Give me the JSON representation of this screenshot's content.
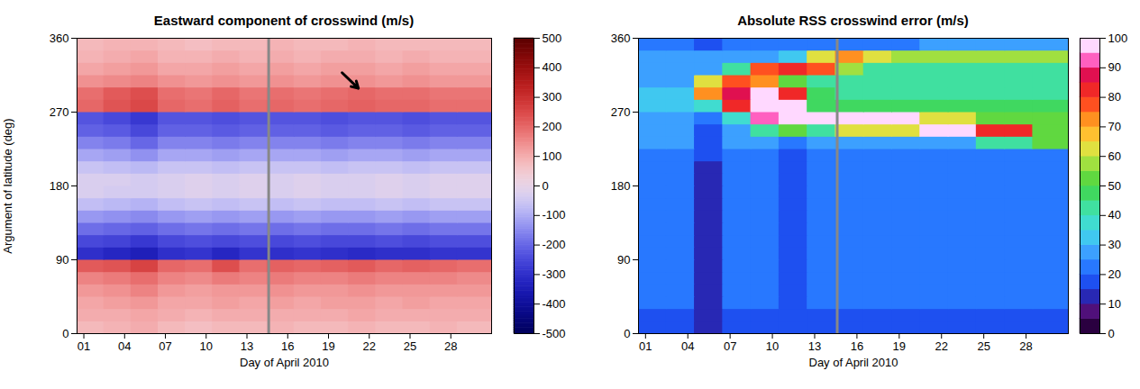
{
  "chart_data": [
    {
      "type": "heatmap",
      "title": "Eastward component of crosswind (m/s)",
      "x_label": "Day of April 2010",
      "y_label": "Argument of latitude (deg)",
      "xlim": [
        0.5,
        31
      ],
      "ylim": [
        0,
        360
      ],
      "xticks": [
        {
          "value": 1,
          "label": "01"
        },
        {
          "value": 4,
          "label": "04"
        },
        {
          "value": 7,
          "label": "07"
        },
        {
          "value": 10,
          "label": "10"
        },
        {
          "value": 13,
          "label": "13"
        },
        {
          "value": 16,
          "label": "16"
        },
        {
          "value": 19,
          "label": "19"
        },
        {
          "value": 22,
          "label": "22"
        },
        {
          "value": 25,
          "label": "25"
        },
        {
          "value": 28,
          "label": "28"
        }
      ],
      "yticks": [
        0,
        90,
        180,
        270,
        360
      ],
      "x_bins": [
        0.5,
        2.5,
        4.5,
        6.5,
        8.5,
        10.5,
        12.5,
        14.5,
        16.5,
        18.5,
        20.5,
        22.5,
        24.5,
        26.5,
        28.5,
        31
      ],
      "y_bins": [
        0,
        15,
        30,
        45,
        60,
        75,
        90,
        105,
        120,
        135,
        150,
        165,
        180,
        195,
        210,
        225,
        240,
        255,
        270,
        285,
        300,
        315,
        330,
        345,
        360
      ],
      "values": [
        [
          80,
          90,
          100,
          80,
          70,
          80,
          80,
          90,
          80,
          80,
          90,
          80,
          80,
          90,
          80
        ],
        [
          100,
          100,
          110,
          100,
          90,
          100,
          100,
          100,
          100,
          100,
          110,
          100,
          100,
          100,
          100
        ],
        [
          110,
          120,
          130,
          110,
          110,
          120,
          110,
          120,
          110,
          120,
          120,
          110,
          120,
          110,
          110
        ],
        [
          130,
          140,
          160,
          130,
          120,
          130,
          130,
          140,
          130,
          130,
          140,
          130,
          130,
          130,
          130
        ],
        [
          160,
          170,
          190,
          160,
          150,
          170,
          160,
          170,
          160,
          160,
          170,
          160,
          160,
          160,
          150
        ],
        [
          220,
          230,
          260,
          200,
          190,
          240,
          190,
          210,
          200,
          210,
          220,
          200,
          210,
          200,
          190
        ],
        [
          -300,
          -320,
          -340,
          -300,
          -290,
          -320,
          -290,
          -300,
          -290,
          -300,
          -310,
          -300,
          -300,
          -290,
          -290
        ],
        [
          -250,
          -260,
          -280,
          -250,
          -240,
          -250,
          -240,
          -250,
          -240,
          -250,
          -250,
          -240,
          -250,
          -240,
          -240
        ],
        [
          -190,
          -200,
          -210,
          -190,
          -180,
          -190,
          -180,
          -190,
          -180,
          -190,
          -190,
          -180,
          -190,
          -180,
          -180
        ],
        [
          -130,
          -140,
          -150,
          -130,
          -120,
          -130,
          -120,
          -130,
          -120,
          -130,
          -130,
          -120,
          -130,
          -120,
          -120
        ],
        [
          -70,
          -80,
          -90,
          -70,
          -60,
          -70,
          -60,
          -70,
          -60,
          -70,
          -70,
          -60,
          -70,
          -60,
          -60
        ],
        [
          -30,
          -40,
          -40,
          -30,
          -20,
          -30,
          -20,
          -30,
          -20,
          -30,
          -30,
          -20,
          -30,
          -20,
          -20
        ],
        [
          -30,
          -30,
          -40,
          -30,
          -20,
          -30,
          -20,
          -30,
          -20,
          -30,
          -30,
          -20,
          -30,
          -20,
          -20
        ],
        [
          -60,
          -70,
          -80,
          -60,
          -60,
          -70,
          -60,
          -60,
          -60,
          -70,
          -60,
          -60,
          -70,
          -60,
          -60
        ],
        [
          -110,
          -120,
          -140,
          -110,
          -110,
          -120,
          -110,
          -110,
          -110,
          -120,
          -110,
          -110,
          -120,
          -110,
          -110
        ],
        [
          -160,
          -170,
          -200,
          -160,
          -160,
          -170,
          -160,
          -160,
          -160,
          -170,
          -160,
          -160,
          -170,
          -160,
          -160
        ],
        [
          -210,
          -220,
          -250,
          -210,
          -210,
          -220,
          -210,
          -210,
          -210,
          -220,
          -210,
          -210,
          -220,
          -210,
          -210
        ],
        [
          -230,
          -250,
          -280,
          -230,
          -230,
          -240,
          -230,
          -230,
          -230,
          -240,
          -230,
          -230,
          -240,
          -230,
          -230
        ],
        [
          200,
          230,
          250,
          200,
          190,
          210,
          190,
          200,
          190,
          200,
          210,
          200,
          200,
          190,
          190
        ],
        [
          190,
          220,
          240,
          190,
          180,
          200,
          180,
          190,
          180,
          190,
          200,
          190,
          190,
          180,
          180
        ],
        [
          140,
          150,
          160,
          140,
          130,
          140,
          130,
          140,
          130,
          140,
          140,
          130,
          140,
          130,
          130
        ],
        [
          110,
          120,
          130,
          110,
          110,
          120,
          110,
          120,
          110,
          120,
          120,
          110,
          120,
          110,
          110
        ],
        [
          90,
          100,
          110,
          90,
          90,
          100,
          90,
          100,
          90,
          100,
          100,
          90,
          100,
          90,
          90
        ],
        [
          80,
          90,
          90,
          80,
          70,
          80,
          80,
          90,
          80,
          80,
          90,
          80,
          80,
          80,
          80
        ]
      ],
      "colorbar": {
        "type": "continuous",
        "range": [
          -500,
          500
        ],
        "ticks": [
          -500,
          -400,
          -300,
          -200,
          -100,
          0,
          100,
          200,
          300,
          400,
          500
        ],
        "colors": [
          "#00005a",
          "#1414c8",
          "#7878f0",
          "#ffffff",
          "#f07878",
          "#c81414",
          "#5a0000"
        ]
      },
      "vertical_line": 14.6,
      "arrow": {
        "x1": 20.0,
        "y1": 318,
        "x2": 21.2,
        "y2": 299
      }
    },
    {
      "type": "heatmap",
      "title": "Absolute RSS crosswind error (m/s)",
      "x_label": "Day of April 2010",
      "xlim": [
        0.5,
        31
      ],
      "ylim": [
        0,
        360
      ],
      "xticks": [
        {
          "value": 1,
          "label": "01"
        },
        {
          "value": 4,
          "label": "04"
        },
        {
          "value": 7,
          "label": "07"
        },
        {
          "value": 10,
          "label": "10"
        },
        {
          "value": 13,
          "label": "13"
        },
        {
          "value": 16,
          "label": "16"
        },
        {
          "value": 19,
          "label": "19"
        },
        {
          "value": 22,
          "label": "22"
        },
        {
          "value": 25,
          "label": "25"
        },
        {
          "value": 28,
          "label": "28"
        }
      ],
      "yticks": [
        0,
        90,
        180,
        270,
        360
      ],
      "x_bins": [
        0.5,
        2.5,
        4.5,
        6.5,
        8.5,
        10.5,
        12.5,
        14.5,
        16.5,
        18.5,
        20.5,
        22.5,
        24.5,
        26.5,
        28.5,
        31
      ],
      "y_bins": [
        0,
        15,
        30,
        45,
        60,
        75,
        90,
        105,
        120,
        135,
        150,
        165,
        180,
        195,
        210,
        225,
        240,
        255,
        270,
        285,
        300,
        315,
        330,
        345,
        360
      ],
      "values": [
        [
          17,
          17,
          11,
          17,
          17,
          15,
          17,
          17,
          17,
          17,
          17,
          17,
          17,
          17,
          17
        ],
        [
          19,
          19,
          12,
          19,
          19,
          16,
          19,
          19,
          19,
          19,
          19,
          19,
          19,
          19,
          19
        ],
        [
          20,
          20,
          12,
          20,
          20,
          16,
          20,
          20,
          20,
          20,
          20,
          20,
          20,
          20,
          20
        ],
        [
          20,
          20,
          12,
          20,
          20,
          16,
          20,
          20,
          20,
          20,
          20,
          20,
          20,
          20,
          20
        ],
        [
          21,
          21,
          13,
          21,
          21,
          17,
          21,
          21,
          21,
          21,
          21,
          21,
          21,
          21,
          21
        ],
        [
          21,
          21,
          13,
          21,
          21,
          17,
          21,
          21,
          21,
          21,
          21,
          21,
          21,
          21,
          21
        ],
        [
          20,
          20,
          12,
          20,
          20,
          16,
          20,
          20,
          20,
          20,
          20,
          20,
          20,
          20,
          20
        ],
        [
          20,
          20,
          12,
          20,
          20,
          16,
          20,
          20,
          20,
          20,
          20,
          20,
          20,
          20,
          20
        ],
        [
          20,
          20,
          12,
          20,
          20,
          16,
          20,
          20,
          20,
          20,
          20,
          20,
          20,
          20,
          20
        ],
        [
          21,
          21,
          13,
          21,
          21,
          17,
          21,
          21,
          21,
          21,
          21,
          21,
          21,
          21,
          21
        ],
        [
          21,
          21,
          13,
          21,
          21,
          17,
          21,
          21,
          21,
          21,
          21,
          21,
          21,
          21,
          21
        ],
        [
          20,
          20,
          12,
          20,
          20,
          16,
          20,
          20,
          20,
          20,
          20,
          20,
          20,
          20,
          20
        ],
        [
          20,
          20,
          12,
          20,
          20,
          16,
          20,
          20,
          20,
          20,
          20,
          20,
          20,
          20,
          20
        ],
        [
          22,
          22,
          14,
          22,
          22,
          18,
          22,
          22,
          22,
          22,
          22,
          22,
          22,
          22,
          22
        ],
        [
          23,
          23,
          15,
          23,
          23,
          19,
          23,
          23,
          23,
          23,
          23,
          23,
          23,
          23,
          23
        ],
        [
          25,
          25,
          16,
          25,
          25,
          22,
          25,
          25,
          25,
          25,
          25,
          25,
          40,
          40,
          50
        ],
        [
          25,
          25,
          18,
          25,
          40,
          50,
          40,
          60,
          60,
          60,
          100,
          100,
          80,
          80,
          50
        ],
        [
          28,
          28,
          22,
          35,
          90,
          100,
          100,
          100,
          100,
          100,
          60,
          60,
          50,
          50,
          50
        ],
        [
          30,
          30,
          35,
          80,
          100,
          100,
          45,
          45,
          45,
          45,
          45,
          45,
          45,
          45,
          45
        ],
        [
          30,
          30,
          70,
          85,
          100,
          80,
          45,
          40,
          40,
          40,
          40,
          40,
          40,
          40,
          40
        ],
        [
          28,
          28,
          60,
          75,
          70,
          50,
          40,
          40,
          40,
          40,
          40,
          40,
          40,
          40,
          40
        ],
        [
          25,
          25,
          28,
          40,
          75,
          80,
          75,
          55,
          40,
          40,
          40,
          40,
          40,
          40,
          40
        ],
        [
          25,
          25,
          25,
          25,
          25,
          30,
          60,
          70,
          60,
          55,
          55,
          55,
          55,
          55,
          55
        ],
        [
          22,
          22,
          18,
          22,
          22,
          22,
          22,
          22,
          22,
          22,
          25,
          25,
          25,
          25,
          25
        ]
      ],
      "colorbar": {
        "type": "threshold",
        "range": [
          0,
          100
        ],
        "ticks": [
          0,
          10,
          20,
          30,
          40,
          50,
          60,
          70,
          80,
          90,
          100
        ],
        "colors": [
          "#2a0040",
          "#50107a",
          "#2828b4",
          "#1e50f0",
          "#2878ff",
          "#3ca0ff",
          "#40c8f0",
          "#40dcd0",
          "#40e0a0",
          "#40d860",
          "#60d840",
          "#a0e040",
          "#e0e040",
          "#ffc030",
          "#ff9020",
          "#ff5020",
          "#f02828",
          "#e01050",
          "#ff60c0",
          "#ffd8ff"
        ]
      },
      "vertical_line": 14.6
    }
  ]
}
